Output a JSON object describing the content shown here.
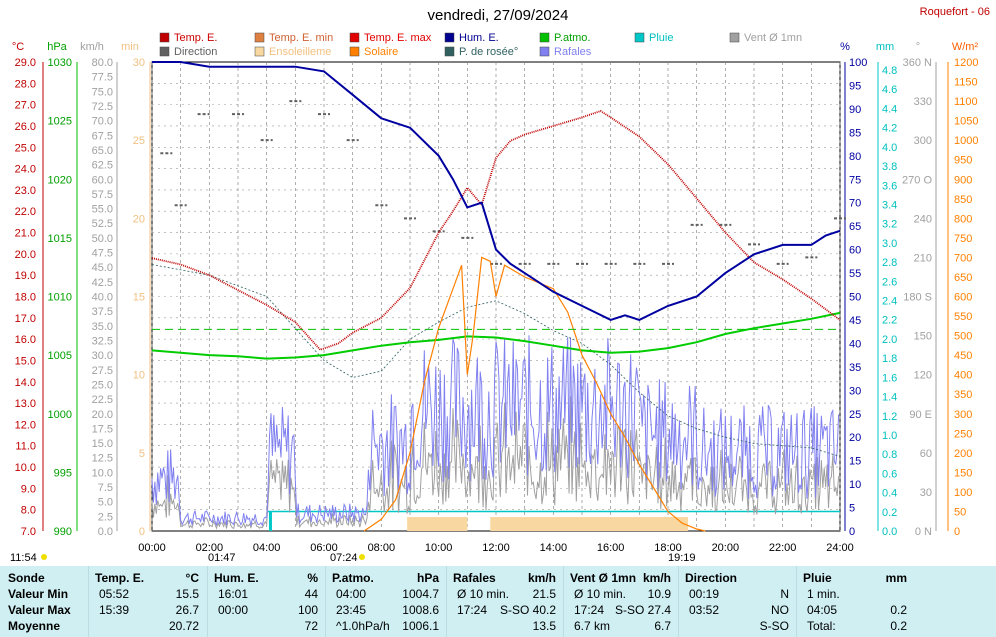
{
  "title": "vendredi, 27/09/2024",
  "station": "Roquefort - 06",
  "legend": [
    {
      "label": "Temp. E.",
      "color": "#c00000",
      "text_color": "#cc0000"
    },
    {
      "label": "Temp. E. min",
      "color": "#e08040",
      "text_color": "#d06030"
    },
    {
      "label": "Temp. E. max",
      "color": "#e00000",
      "text_color": "#e00000"
    },
    {
      "label": "Hum. E.",
      "color": "#000090",
      "text_color": "#000090"
    },
    {
      "label": "P.atmo.",
      "color": "#00c000",
      "text_color": "#00a000"
    },
    {
      "label": "Pluie",
      "color": "#00c8c8",
      "text_color": "#00c0c0"
    },
    {
      "label": "Vent Ø 1mn",
      "color": "#a0a0a0",
      "text_color": "#a0a0a0"
    },
    {
      "label": "Direction",
      "color": "#606060",
      "text_color": "#606060"
    },
    {
      "label": "Ensoleilleme",
      "color": "#f8d8a0",
      "text_color": "#f0c080"
    },
    {
      "label": "Solaire",
      "color": "#ff8000",
      "text_color": "#ff8000"
    },
    {
      "label": "P. de rosée°",
      "color": "#306060",
      "text_color": "#306060"
    },
    {
      "label": "Rafales",
      "color": "#8080f0",
      "text_color": "#8080f0"
    }
  ],
  "axes": {
    "temp": {
      "unit": "°C",
      "ticks": [
        "29.0",
        "28.0",
        "27.0",
        "26.0",
        "25.0",
        "24.0",
        "23.0",
        "22.0",
        "21.0",
        "20.0",
        "19.0",
        "18.0",
        "17.0",
        "16.0",
        "15.0",
        "14.0",
        "13.0",
        "12.0",
        "11.0",
        "10.0",
        "9.0",
        "8.0",
        "7.0"
      ]
    },
    "press": {
      "unit": "hPa",
      "ticks": [
        "1030",
        "1025",
        "1020",
        "1015",
        "1010",
        "1005",
        "1000",
        "995",
        "990"
      ]
    },
    "wind": {
      "unit": "km/h",
      "ticks": [
        "80.0",
        "77.5",
        "75.0",
        "72.5",
        "70.0",
        "67.5",
        "65.0",
        "62.5",
        "60.0",
        "57.5",
        "55.0",
        "52.5",
        "50.0",
        "47.5",
        "45.0",
        "42.5",
        "40.0",
        "37.5",
        "35.0",
        "32.5",
        "30.0",
        "27.5",
        "25.0",
        "22.5",
        "20.0",
        "17.5",
        "15.0",
        "12.5",
        "10.0",
        "7.5",
        "5.0",
        "2.5",
        "0.0"
      ]
    },
    "min": {
      "unit": "min",
      "ticks": [
        "30",
        "25",
        "20",
        "15",
        "10",
        "5",
        "0"
      ]
    },
    "hum": {
      "unit": "%",
      "ticks": [
        "100",
        "95",
        "90",
        "85",
        "80",
        "75",
        "70",
        "65",
        "60",
        "55",
        "50",
        "45",
        "40",
        "35",
        "30",
        "25",
        "20",
        "15",
        "10",
        "5",
        "0"
      ]
    },
    "rain": {
      "unit": "mm",
      "ticks": [
        "4.8",
        "4.6",
        "4.4",
        "4.2",
        "4.0",
        "3.8",
        "3.6",
        "3.4",
        "3.2",
        "3.0",
        "2.8",
        "2.6",
        "2.4",
        "2.2",
        "2.0",
        "1.8",
        "1.6",
        "1.4",
        "1.2",
        "1.0",
        "0.8",
        "0.6",
        "0.4",
        "0.2",
        "0.0"
      ]
    },
    "dir": {
      "unit": "°",
      "ticks": [
        "360 N",
        "330",
        "300",
        "270 O",
        "240",
        "210",
        "180 S",
        "150",
        "120",
        "90 E",
        "60",
        "30",
        "0 N"
      ]
    },
    "solar": {
      "unit": "W/m²",
      "ticks": [
        "1200",
        "1150",
        "1100",
        "1050",
        "1000",
        "950",
        "900",
        "850",
        "800",
        "750",
        "700",
        "650",
        "600",
        "550",
        "500",
        "450",
        "400",
        "350",
        "300",
        "250",
        "200",
        "150",
        "100",
        "50",
        "0"
      ]
    },
    "time": [
      "00:00",
      "02:00",
      "04:00",
      "06:00",
      "08:00",
      "10:00",
      "12:00",
      "14:00",
      "16:00",
      "18:00",
      "20:00",
      "22:00",
      "24:00"
    ]
  },
  "markers": {
    "low_left": "11:54",
    "sunrise_label": "01:47",
    "sunrise_time": "07:24",
    "sunset_label": "19:19"
  },
  "stats": {
    "rows": [
      "Valeur Min",
      "Valeur Max",
      "Moyenne"
    ],
    "sonde": "Sonde",
    "cols": [
      {
        "name": "Temp. E.",
        "unit": "°C",
        "rows": [
          [
            "05:52",
            "15.5"
          ],
          [
            "15:39",
            "26.7"
          ],
          [
            "",
            "20.72"
          ]
        ]
      },
      {
        "name": "Hum. E.",
        "unit": "%",
        "rows": [
          [
            "16:01",
            "44"
          ],
          [
            "00:00",
            "100"
          ],
          [
            "",
            "72"
          ]
        ]
      },
      {
        "name": "P.atmo.",
        "unit": "hPa",
        "rows": [
          [
            "04:00",
            "1004.7"
          ],
          [
            "23:45",
            "1008.6"
          ],
          [
            "^1.0hPa/h",
            "1006.1"
          ]
        ]
      },
      {
        "name": "Rafales",
        "unit": "km/h",
        "rows": [
          [
            "Ø 10 min.",
            "21.5"
          ],
          [
            "17:24",
            "S-SO 40.2"
          ],
          [
            "",
            "13.5"
          ]
        ]
      },
      {
        "name": "Vent Ø 1mn",
        "unit": "km/h",
        "rows": [
          [
            "Ø 10 min.",
            "10.9"
          ],
          [
            "17:24",
            "S-SO 27.4"
          ],
          [
            "6.7 km",
            "6.7"
          ]
        ]
      },
      {
        "name": "Direction",
        "unit": "",
        "rows": [
          [
            "00:19",
            "N"
          ],
          [
            "03:52",
            "NO"
          ],
          [
            "",
            "S-SO"
          ]
        ]
      },
      {
        "name": "Pluie",
        "unit": "mm",
        "rows": [
          [
            "1 min.",
            ""
          ],
          [
            "04:05",
            "0.2"
          ],
          [
            "Total:",
            "0.2"
          ]
        ]
      }
    ]
  },
  "chart_data": {
    "type": "line",
    "title": "vendredi, 27/09/2024",
    "x_unit": "hours",
    "xlim": [
      0,
      24
    ],
    "series": [
      {
        "name": "Temp. E.",
        "unit": "°C",
        "x": [
          0,
          1,
          2,
          3,
          4,
          5,
          5.87,
          6.5,
          7,
          8,
          9,
          10,
          10.5,
          11,
          11.5,
          12,
          12.5,
          13,
          14,
          15,
          15.65,
          16,
          17,
          18,
          19,
          20,
          21,
          22,
          23,
          24
        ],
        "y": [
          19.8,
          19.5,
          19.0,
          18.3,
          17.6,
          16.8,
          15.5,
          15.8,
          16.3,
          17.0,
          18.4,
          21.0,
          22.0,
          23.1,
          22.3,
          24.5,
          25.3,
          25.6,
          26.0,
          26.4,
          26.7,
          26.4,
          25.5,
          24.2,
          22.6,
          21.0,
          19.6,
          18.8,
          17.9,
          16.9
        ]
      },
      {
        "name": "Hum. E.",
        "unit": "%",
        "x": [
          0,
          1,
          2,
          3,
          4,
          5,
          6,
          7,
          8,
          9,
          10,
          10.5,
          11,
          11.5,
          12,
          12.5,
          13,
          14,
          15,
          16,
          16.5,
          17,
          18,
          19,
          20,
          21,
          22,
          23,
          23.5,
          24
        ],
        "y": [
          100,
          100,
          99,
          99,
          99,
          99,
          98,
          93,
          88,
          86,
          80,
          75,
          69,
          70,
          60,
          57,
          55,
          51,
          48,
          45,
          46,
          45,
          48,
          50,
          55,
          59,
          61,
          61,
          63,
          64
        ]
      },
      {
        "name": "P.atmo.",
        "unit": "hPa",
        "x": [
          0,
          1,
          2,
          3,
          4,
          5,
          6,
          7,
          8,
          9,
          10,
          11,
          12,
          13,
          14,
          15,
          16,
          17,
          18,
          19,
          20,
          21,
          22,
          23,
          24
        ],
        "y": [
          1005.4,
          1005.2,
          1005.0,
          1004.9,
          1004.7,
          1004.8,
          1005.0,
          1005.4,
          1005.8,
          1006.1,
          1006.3,
          1006.6,
          1006.5,
          1006.2,
          1005.8,
          1005.4,
          1005.2,
          1005.3,
          1005.6,
          1006.1,
          1006.8,
          1007.3,
          1007.7,
          1008.1,
          1008.6
        ]
      },
      {
        "name": "Solaire",
        "unit": "W/m²",
        "x": [
          7.4,
          8,
          8.5,
          9,
          9.5,
          10,
          10.5,
          10.8,
          11,
          11.2,
          11.5,
          11.8,
          12,
          12.3,
          13,
          14,
          14.5,
          15,
          15.5,
          16,
          16.5,
          17,
          17.5,
          18,
          18.5,
          19,
          19.3
        ],
        "y": [
          0,
          30,
          80,
          200,
          380,
          520,
          620,
          680,
          400,
          500,
          700,
          690,
          600,
          680,
          650,
          620,
          560,
          450,
          380,
          300,
          240,
          170,
          110,
          50,
          20,
          5,
          0
        ]
      },
      {
        "name": "P. de rosée°",
        "unit": "°C",
        "x": [
          0,
          2,
          4,
          6,
          7,
          8,
          9,
          10,
          11,
          12,
          13,
          14,
          15,
          16,
          17,
          18,
          19,
          20,
          21,
          22,
          23,
          24
        ],
        "y": [
          19.5,
          19.0,
          18.0,
          15.0,
          14.2,
          14.5,
          16.0,
          16.8,
          17.5,
          17.8,
          17.2,
          16.4,
          15.8,
          14.8,
          13.5,
          12.4,
          11.8,
          11.4,
          11.1,
          11.0,
          10.9,
          10.5
        ]
      },
      {
        "name": "Direction",
        "unit": "°",
        "x": [
          0.5,
          1,
          1.8,
          3,
          4,
          5,
          6,
          7,
          8,
          9,
          10,
          11,
          12,
          13,
          14,
          15,
          16,
          17,
          18,
          19,
          20,
          21,
          22,
          23,
          24
        ],
        "y": [
          290,
          250,
          320,
          320,
          300,
          330,
          320,
          300,
          250,
          240,
          230,
          225,
          205,
          205,
          205,
          205,
          205,
          205,
          205,
          235,
          235,
          220,
          205,
          210,
          240
        ]
      }
    ],
    "rain_bars": [
      {
        "x": 4.08,
        "value": 0.2
      }
    ],
    "sunshine_periods": [
      [
        8.9,
        11.0
      ],
      [
        11.8,
        18.7
      ]
    ]
  }
}
